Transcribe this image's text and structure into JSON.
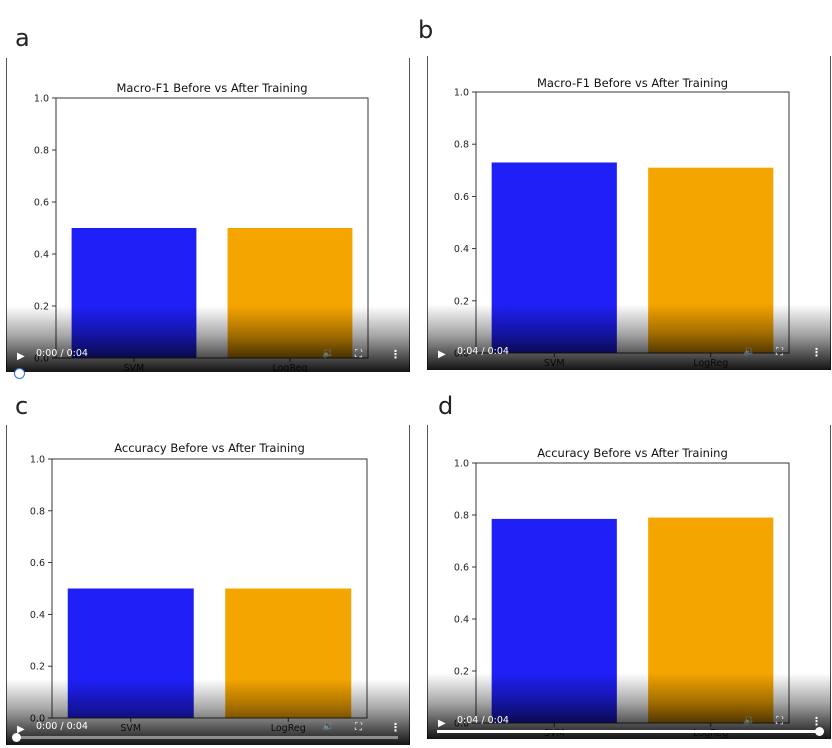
{
  "panels": [
    {
      "letter": "a",
      "player": {
        "time": "0:00 / 0:04",
        "progress": 0.0
      }
    },
    {
      "letter": "b",
      "player": {
        "time": "0:04 / 0:04",
        "progress": 1.0
      }
    },
    {
      "letter": "c",
      "player": {
        "time": "0:00 / 0:04",
        "progress": 0.0
      }
    },
    {
      "letter": "d",
      "player": {
        "time": "0:04 / 0:04",
        "progress": 1.0
      }
    }
  ],
  "icons": {
    "play": "play-icon",
    "volume": "volume-icon",
    "fullscreen": "fullscreen-icon",
    "menu": "more-vert-icon"
  },
  "colors": {
    "svm": "#1f1ff7",
    "logreg": "#f5a500"
  },
  "chart_data": [
    {
      "panel": "a",
      "type": "bar",
      "title": "Macro-F1 Before vs After Training",
      "categories": [
        "SVM",
        "LogReg"
      ],
      "values": [
        0.5,
        0.5
      ],
      "ylim": [
        0,
        1.0
      ],
      "yticks": [
        "0.0",
        "0.2",
        "0.4",
        "0.6",
        "0.8",
        "1.0"
      ],
      "colors": [
        "#1f1ff7",
        "#f5a500"
      ],
      "xlabel": "",
      "ylabel": ""
    },
    {
      "panel": "b",
      "type": "bar",
      "title": "Macro-F1 Before vs After Training",
      "categories": [
        "SVM",
        "LogReg"
      ],
      "values": [
        0.73,
        0.71
      ],
      "ylim": [
        0,
        1.0
      ],
      "yticks": [
        "0.0",
        "0.2",
        "0.4",
        "0.6",
        "0.8",
        "1.0"
      ],
      "colors": [
        "#1f1ff7",
        "#f5a500"
      ],
      "xlabel": "",
      "ylabel": ""
    },
    {
      "panel": "c",
      "type": "bar",
      "title": "Accuracy Before vs After Training",
      "categories": [
        "SVM",
        "LogReg"
      ],
      "values": [
        0.5,
        0.5
      ],
      "ylim": [
        0,
        1.0
      ],
      "yticks": [
        "0.0",
        "0.2",
        "0.4",
        "0.6",
        "0.8",
        "1.0"
      ],
      "colors": [
        "#1f1ff7",
        "#f5a500"
      ],
      "xlabel": "",
      "ylabel": ""
    },
    {
      "panel": "d",
      "type": "bar",
      "title": "Accuracy Before vs After Training",
      "categories": [
        "SVM",
        "LogReg"
      ],
      "values": [
        0.785,
        0.79
      ],
      "ylim": [
        0,
        1.0
      ],
      "yticks": [
        "0.0",
        "0.2",
        "0.4",
        "0.6",
        "0.8",
        "1.0"
      ],
      "colors": [
        "#1f1ff7",
        "#f5a500"
      ],
      "xlabel": "",
      "ylabel": ""
    }
  ]
}
